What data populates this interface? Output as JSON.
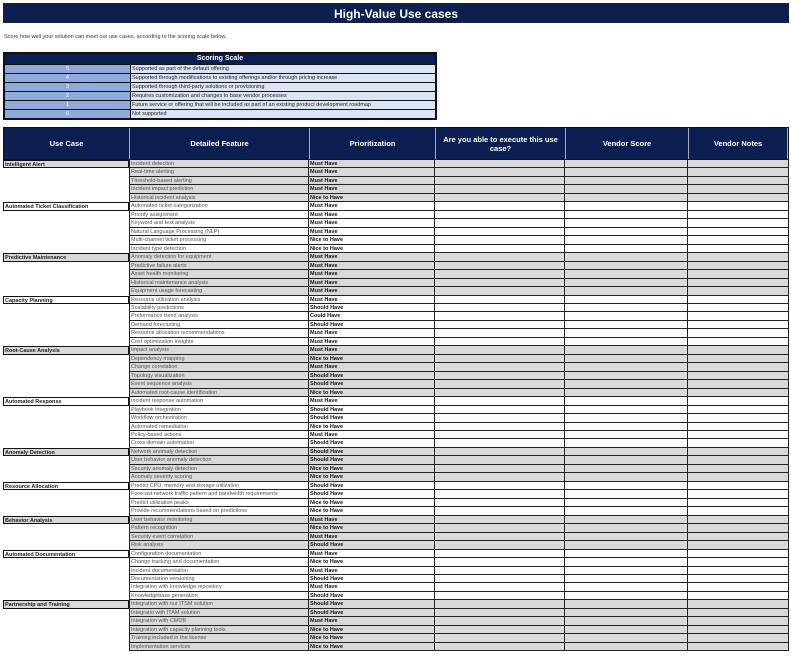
{
  "title": "High-Value Use cases",
  "intro": "Score how well your solution can meet our use cases, according to the scoring scale below.",
  "scoring_scale": {
    "title": "Scoring Scale",
    "rows": [
      {
        "score": "5",
        "description": "Supported as part of the default offering"
      },
      {
        "score": "4",
        "description": "Supported through modifications to existing offerings and/or through pricing increase"
      },
      {
        "score": "3",
        "description": "Supported through third-party solutions or provisioning"
      },
      {
        "score": "2",
        "description": "Requires customization and changes to base vendor processes"
      },
      {
        "score": "1",
        "description": "Future service or offering that will be included as part of an existing product development roadmap"
      },
      {
        "score": "0",
        "description": "Not supported"
      }
    ]
  },
  "table": {
    "headers": [
      "Use Case",
      "Detailed Feature",
      "Prioritization",
      "Are you able to execute this use case?",
      "Vendor Score",
      "Vendor Notes"
    ],
    "groups": [
      {
        "use_case": "Intelligent Alert",
        "rows": [
          [
            "Incident detection",
            "Must Have"
          ],
          [
            "Real-time alerting",
            "Must Have"
          ],
          [
            "Threshold-based alerting",
            "Must Have"
          ],
          [
            "Incident impact prediction",
            "Must Have"
          ],
          [
            "Historical incident analysis",
            "Nice to Have"
          ]
        ]
      },
      {
        "use_case": "Automated Ticket Classification",
        "rows": [
          [
            "Automated ticket categorization",
            "Must Have"
          ],
          [
            "Priority assignment",
            "Must Have"
          ],
          [
            "Keyword and text analysis",
            "Must Have"
          ],
          [
            "Natural Language Processing (NLP)",
            "Must Have"
          ],
          [
            "Multi-channel ticket processing",
            "Nice to Have"
          ],
          [
            "Incident type detection",
            "Nice to Have"
          ]
        ]
      },
      {
        "use_case": "Predictive Maintenance",
        "rows": [
          [
            "Anomaly detection for equipment",
            "Must Have"
          ],
          [
            "Predictive failure alerts",
            "Must Have"
          ],
          [
            "Asset health monitoring",
            "Must Have"
          ],
          [
            "Historical maintenance analysis",
            "Must Have"
          ],
          [
            "Equipment usage forecasting",
            "Must Have"
          ]
        ]
      },
      {
        "use_case": "Capacity Planning",
        "rows": [
          [
            "Resource utilization analysis",
            "Must Have"
          ],
          [
            "Scalability predictions",
            "Should Have"
          ],
          [
            "Preformance trend analysis",
            "Could Have"
          ],
          [
            "Demand forecasting",
            "Should Have"
          ],
          [
            "Resource allocation recommendations",
            "Must Have"
          ],
          [
            "Cost optimization insights",
            "Must Have"
          ]
        ]
      },
      {
        "use_case": "Root-Cause Analysis",
        "rows": [
          [
            "Impact analysis",
            "Must Have"
          ],
          [
            "Dependency mapping",
            "Nice to Have"
          ],
          [
            "Change correlation",
            "Must Have"
          ],
          [
            "Topology visualization",
            "Should Have"
          ],
          [
            "Event sequence analysis",
            "Should Have"
          ],
          [
            "Automated root-cause identification",
            "Nice to Have"
          ]
        ]
      },
      {
        "use_case": "Automated Response",
        "rows": [
          [
            "Incident response automation",
            "Must Have"
          ],
          [
            "Playbook integration",
            "Should Have"
          ],
          [
            "Workflow orchestration",
            "Should Have"
          ],
          [
            "Automated remediation",
            "Nice to Have"
          ],
          [
            "Policy-based actions",
            "Must Have"
          ],
          [
            "Cross-domain automation",
            "Should Have"
          ]
        ]
      },
      {
        "use_case": "Anomaly Detection",
        "rows": [
          [
            "Network anomaly detection",
            "Should Have"
          ],
          [
            "User behavior anomaly detection",
            "Should Have"
          ],
          [
            "Security anomaly detection",
            "Nice to Have"
          ],
          [
            "Anomaly severity scoring",
            "Nice to Have"
          ]
        ]
      },
      {
        "use_case": "Resource Allocation",
        "rows": [
          [
            "Predict CPU, memory and storage utilization",
            "Should Have"
          ],
          [
            "Forecast network traffic pattern and bandwidth requirements",
            "Should Have"
          ],
          [
            "Predict utilization peaks",
            "Nice to Have"
          ],
          [
            "Provide recommendations based on predictions",
            "Nice to Have"
          ]
        ]
      },
      {
        "use_case": "Behavior Analysis",
        "rows": [
          [
            "User behavior monitoring",
            "Must Have"
          ],
          [
            "Pattern recognition",
            "Nice to Have"
          ],
          [
            "Security event correlation",
            "Must Have"
          ],
          [
            "Risk analysis",
            "Should Have"
          ]
        ]
      },
      {
        "use_case": "Automated Documentation",
        "rows": [
          [
            "Configuration documentation",
            "Must Have"
          ],
          [
            "Change tracking and documentation",
            "Nice to Have"
          ],
          [
            "Incident documentation",
            "Must Have"
          ],
          [
            "Documentation versioning",
            "Should Have"
          ],
          [
            "Integration with knowledge repository",
            "Must Have"
          ],
          [
            "Knowledgebase generation",
            "Should Have"
          ]
        ]
      },
      {
        "use_case": "Partnership and Training",
        "rows": [
          [
            "Integration with our ITSM solution",
            "Should Have"
          ],
          [
            "Integratio with ITAM solution",
            "Should Have"
          ],
          [
            "Integration with CMDB",
            "Must Have"
          ],
          [
            "Integration with capacity planning tools",
            "Nice to Have"
          ],
          [
            "Training included in the license",
            "Nice to Have"
          ],
          [
            "Implementation services",
            "Nice to Have"
          ]
        ]
      }
    ]
  },
  "colors": {
    "header": "#0c1f52",
    "score_cell": "#8eaadb",
    "scale_desc": "#dbe4f3",
    "row_gray": "#d9d9d9"
  }
}
